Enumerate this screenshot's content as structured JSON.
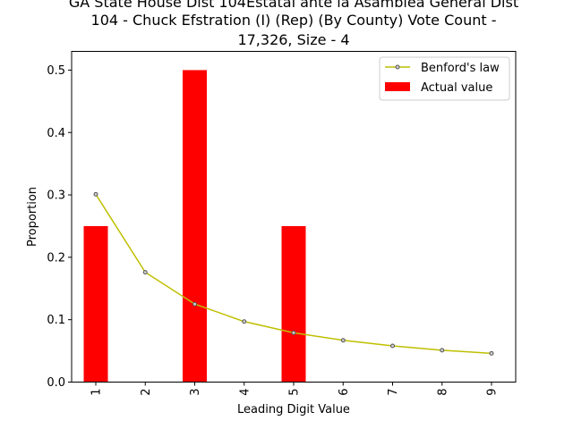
{
  "chart_data": {
    "type": "bar",
    "title_lines": [
      "GA State House Dist 104Estatal ante la Asamblea General Dist",
      "104 - Chuck Efstration (I) (Rep) (By County) Vote Count -",
      "17,326, Size - 4"
    ],
    "xlabel": "Leading Digit Value",
    "ylabel": "Proportion",
    "categories": [
      "1",
      "2",
      "3",
      "4",
      "5",
      "6",
      "7",
      "8",
      "9"
    ],
    "ylim": [
      0,
      0.53
    ],
    "yticks": [
      "0.0",
      "0.1",
      "0.2",
      "0.3",
      "0.4",
      "0.5"
    ],
    "grid": false,
    "legend_position": "top-right",
    "series": [
      {
        "name": "Benford's law",
        "kind": "line",
        "color": "#bfbf00",
        "values": [
          0.301,
          0.176,
          0.125,
          0.097,
          0.079,
          0.067,
          0.058,
          0.051,
          0.046
        ]
      },
      {
        "name": "Actual value",
        "kind": "bar",
        "color": "#ff0000",
        "values": [
          0.25,
          0,
          0.5,
          0,
          0.25,
          0,
          0,
          0,
          0
        ]
      }
    ]
  }
}
